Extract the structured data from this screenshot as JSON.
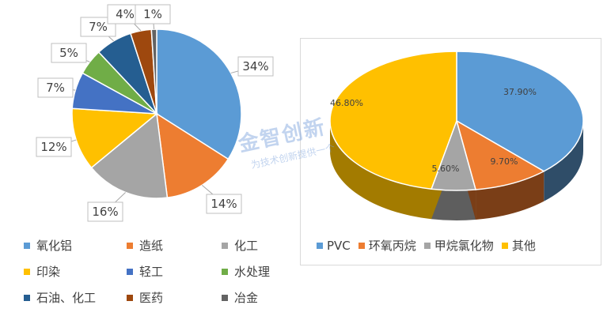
{
  "chart_data": [
    {
      "type": "pie",
      "categories": [
        "氧化铝",
        "造纸",
        "化工",
        "印染",
        "轻工",
        "水处理",
        "石油、化工",
        "医药",
        "冶金"
      ],
      "values": [
        34,
        14,
        16,
        12,
        7,
        5,
        7,
        4,
        1
      ],
      "data_labels": [
        "34%",
        "14%",
        "16%",
        "12%",
        "7%",
        "5%",
        "7%",
        "4%",
        "1%"
      ],
      "colors": [
        "#5b9bd5",
        "#ed7d31",
        "#a5a5a5",
        "#ffc000",
        "#4472c4",
        "#70ad47",
        "#255e91",
        "#9e480e",
        "#636363"
      ],
      "legend": "bottom"
    },
    {
      "type": "pie",
      "style": "3d",
      "categories": [
        "PVC",
        "环氧丙烷",
        "甲烷氯化物",
        "其他"
      ],
      "values": [
        37.9,
        9.7,
        5.6,
        46.8
      ],
      "data_labels": [
        "37.90%",
        "9.70%",
        "5.60%",
        "46.80%"
      ],
      "colors": [
        "#5b9bd5",
        "#ed7d31",
        "#a5a5a5",
        "#ffc000"
      ],
      "legend": "bottom"
    }
  ],
  "watermark": {
    "title": "金智创新",
    "slogan": "为技术创新提供一个"
  }
}
